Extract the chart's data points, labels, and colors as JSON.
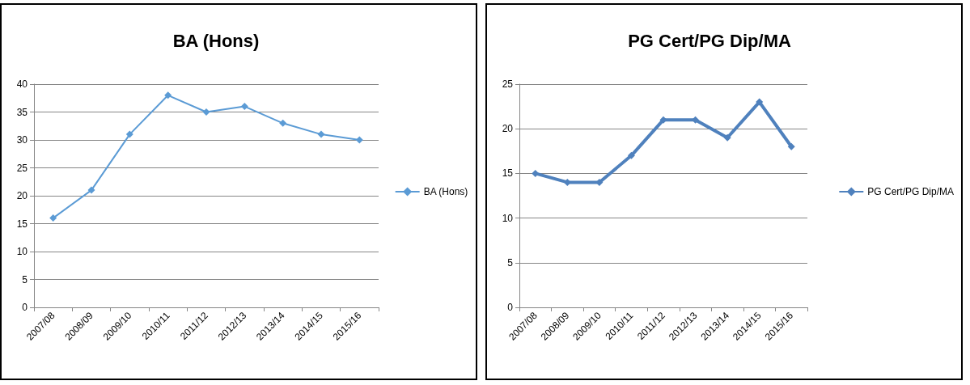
{
  "chart_data": [
    {
      "type": "line",
      "title": "BA (Hons)",
      "categories": [
        "2007/08",
        "2008/09",
        "2009/10",
        "2010/11",
        "2011/12",
        "2012/13",
        "2013/14",
        "2014/15",
        "2015/16"
      ],
      "series": [
        {
          "name": "BA (Hons)",
          "color": "#5b9bd5",
          "values": [
            16,
            21,
            31,
            38,
            35,
            36,
            33,
            31,
            30
          ]
        }
      ],
      "ylim": [
        0,
        40
      ],
      "yticks": [
        0,
        5,
        10,
        15,
        20,
        25,
        30,
        35,
        40
      ],
      "grid": "y",
      "legend": "right",
      "marker": "diamond"
    },
    {
      "type": "line",
      "title": "PG Cert/PG Dip/MA",
      "categories": [
        "2007/08",
        "2008/09",
        "2009/10",
        "2010/11",
        "2011/12",
        "2012/13",
        "2013/14",
        "2014/15",
        "2015/16"
      ],
      "series": [
        {
          "name": "PG Cert/PG Dip/MA",
          "color": "#4f81bd",
          "values": [
            15,
            14,
            14,
            17,
            21,
            21,
            19,
            23,
            18
          ]
        }
      ],
      "ylim": [
        0,
        25
      ],
      "yticks": [
        0,
        5,
        10,
        15,
        20,
        25
      ],
      "grid": "y",
      "legend": "right",
      "marker": "diamond"
    }
  ]
}
